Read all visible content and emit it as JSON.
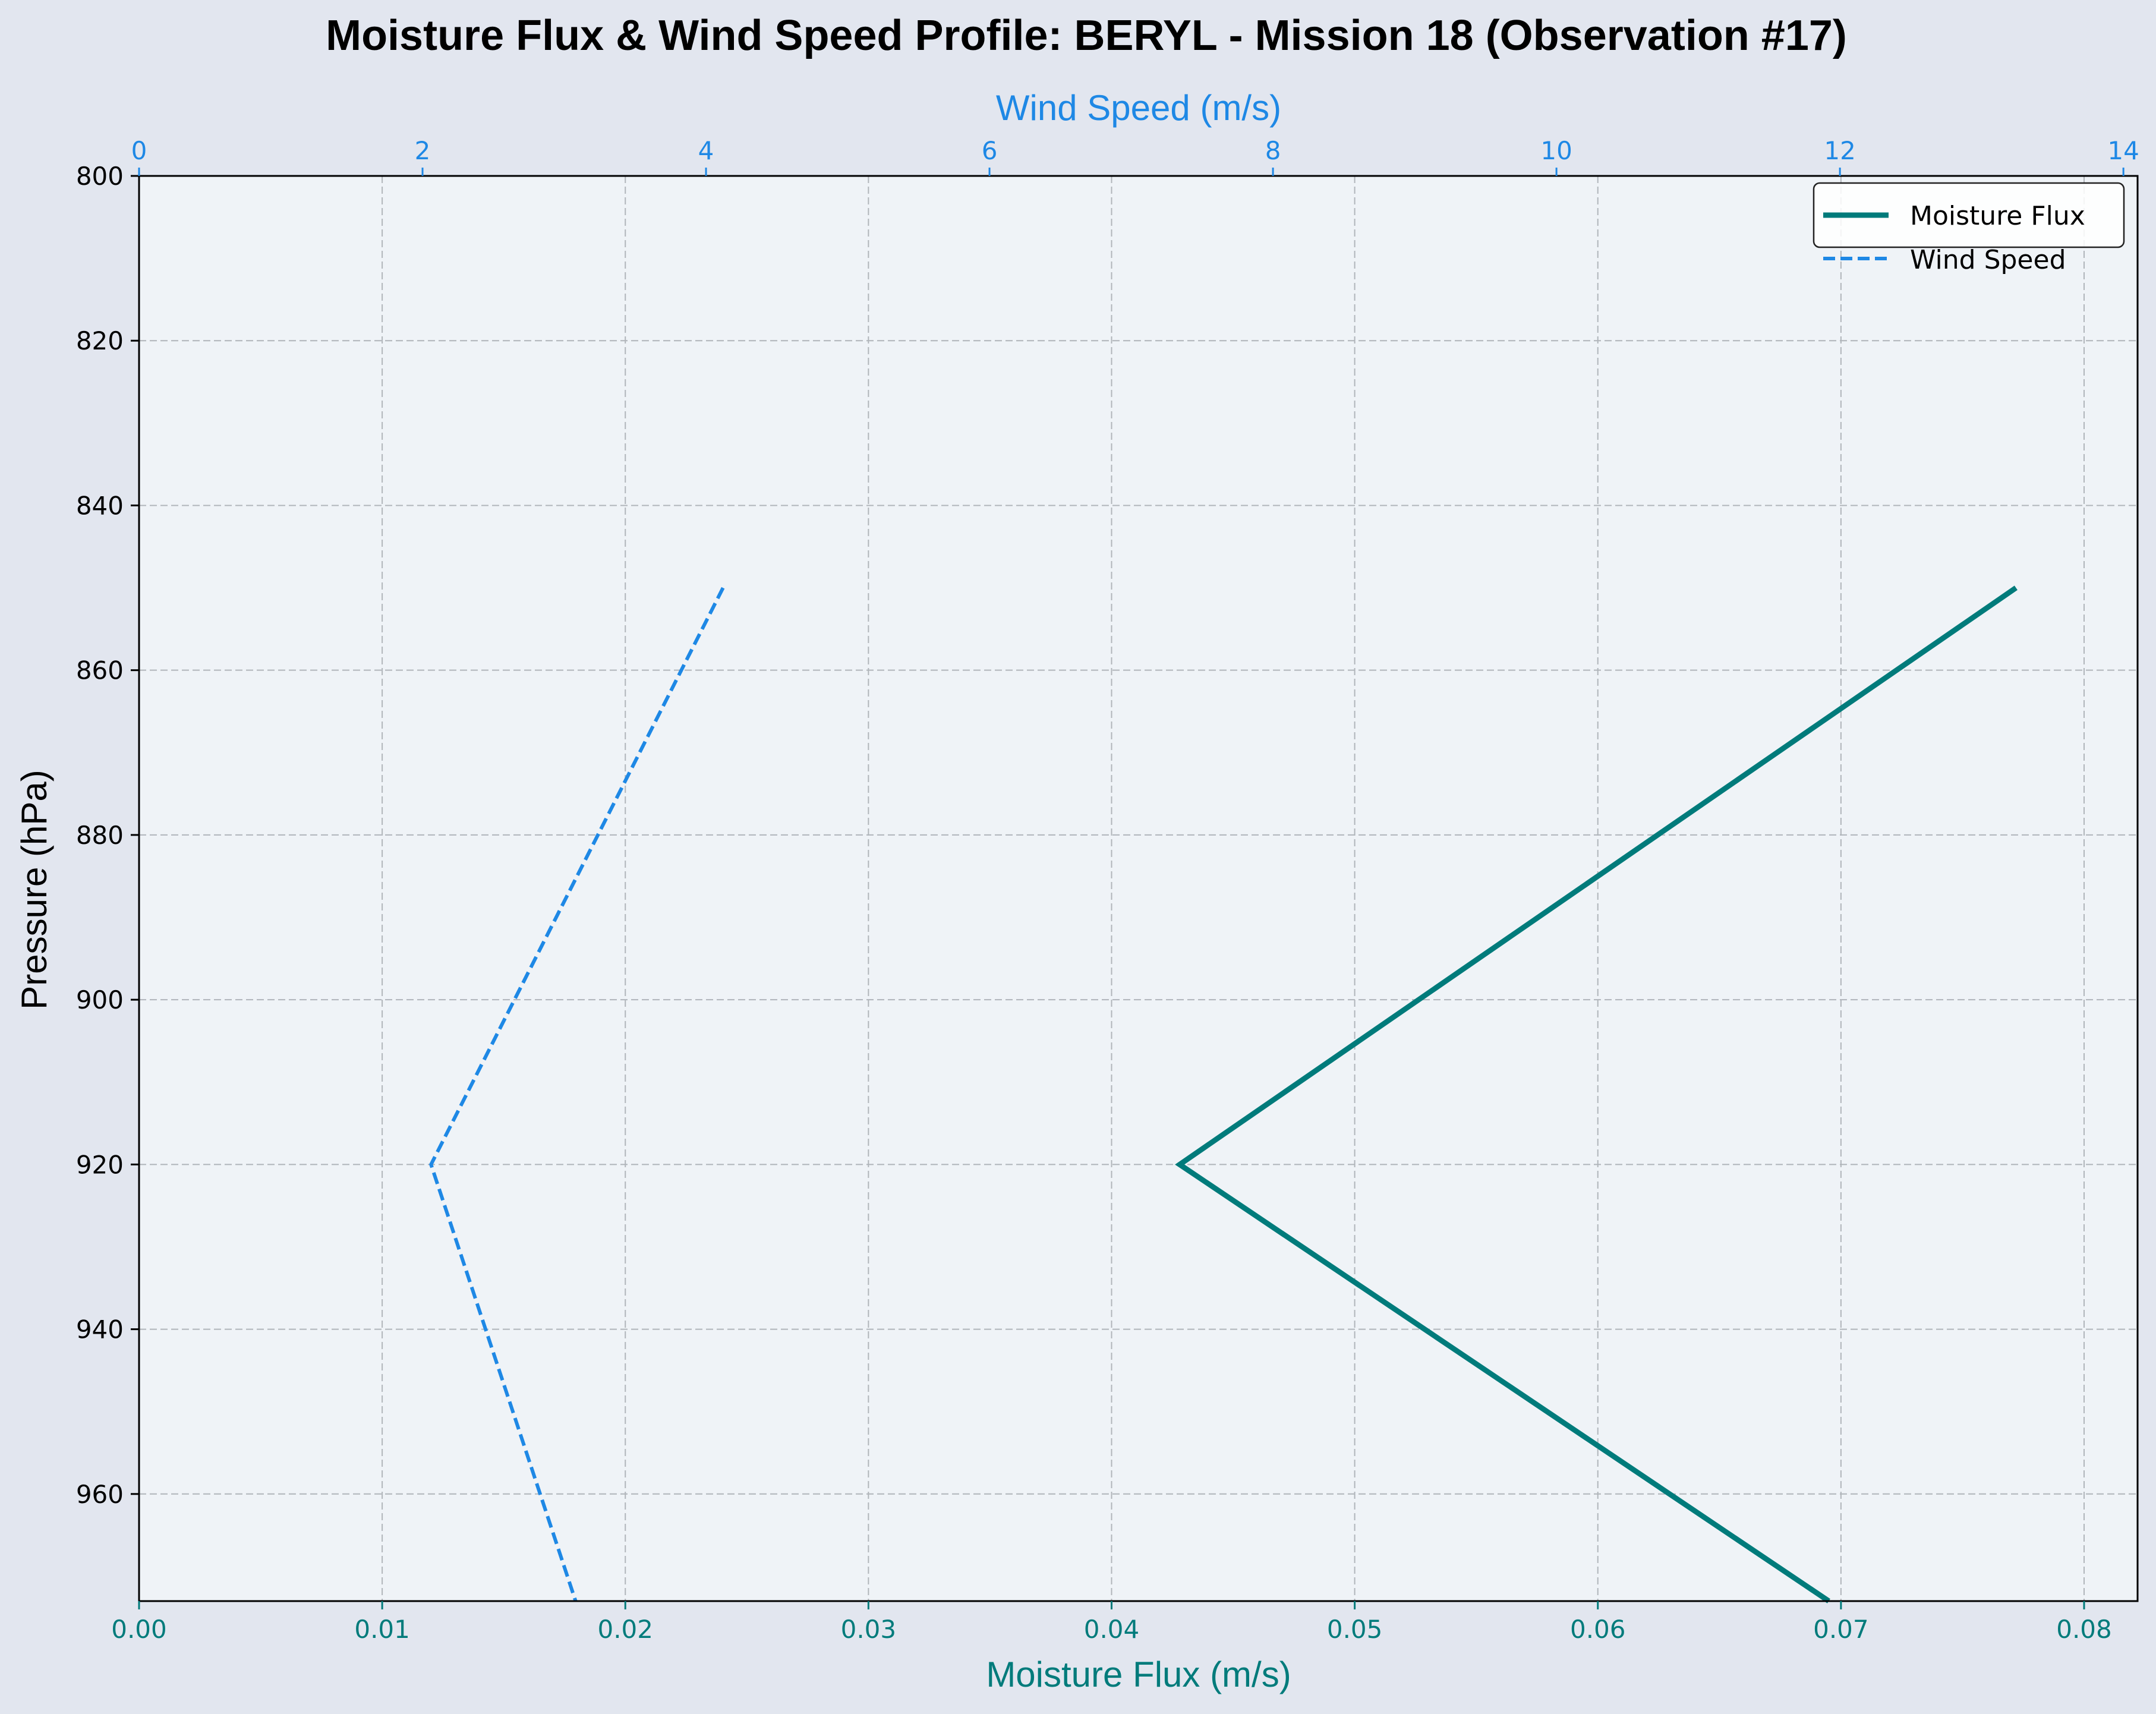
{
  "chart_data": {
    "type": "line",
    "title": "Moisture Flux & Wind Speed Profile: BERYL - Mission 18 (Observation #17)",
    "ylabel": "Pressure (hPa)",
    "xlabel_bottom": "Moisture Flux (m/s)",
    "xlabel_top": "Wind Speed (m/s)",
    "y_axis": {
      "inverted": true,
      "range": [
        800,
        973
      ],
      "ticks": [
        800,
        820,
        840,
        860,
        880,
        900,
        920,
        940,
        960
      ],
      "tick_labels": [
        "800",
        "820",
        "840",
        "860",
        "880",
        "900",
        "920",
        "940",
        "960"
      ]
    },
    "x_bottom": {
      "range": [
        0,
        0.0822
      ],
      "ticks": [
        0,
        0.01,
        0.02,
        0.03,
        0.04,
        0.05,
        0.06,
        0.07,
        0.08
      ],
      "tick_labels": [
        "0.00",
        "0.01",
        "0.02",
        "0.03",
        "0.04",
        "0.05",
        "0.06",
        "0.07",
        "0.08"
      ]
    },
    "x_top": {
      "range": [
        0,
        14.1
      ],
      "ticks": [
        0,
        2,
        4,
        6,
        8,
        10,
        12,
        14
      ],
      "tick_labels": [
        "0",
        "2",
        "4",
        "6",
        "8",
        "10",
        "12",
        "14"
      ]
    },
    "grid": true,
    "legend_position": "top-right",
    "series": [
      {
        "name": "Moisture Flux",
        "axis": "bottom",
        "style": "solid",
        "color": "#007b7b",
        "points": [
          [
            0.0772,
            850
          ],
          [
            0.0428,
            920
          ],
          [
            0.0695,
            973
          ]
        ]
      },
      {
        "name": "Wind Speed",
        "axis": "top",
        "style": "dashed",
        "color": "#1e88e5",
        "points": [
          [
            4.12,
            850
          ],
          [
            2.06,
            920
          ],
          [
            3.08,
            973
          ]
        ]
      }
    ],
    "colors": {
      "background": "#e2e6ef",
      "plot_background": "#eff3f7",
      "grid": "#b0b5ba",
      "bottom_axis": "#007b7b",
      "top_axis": "#1e88e5"
    }
  }
}
